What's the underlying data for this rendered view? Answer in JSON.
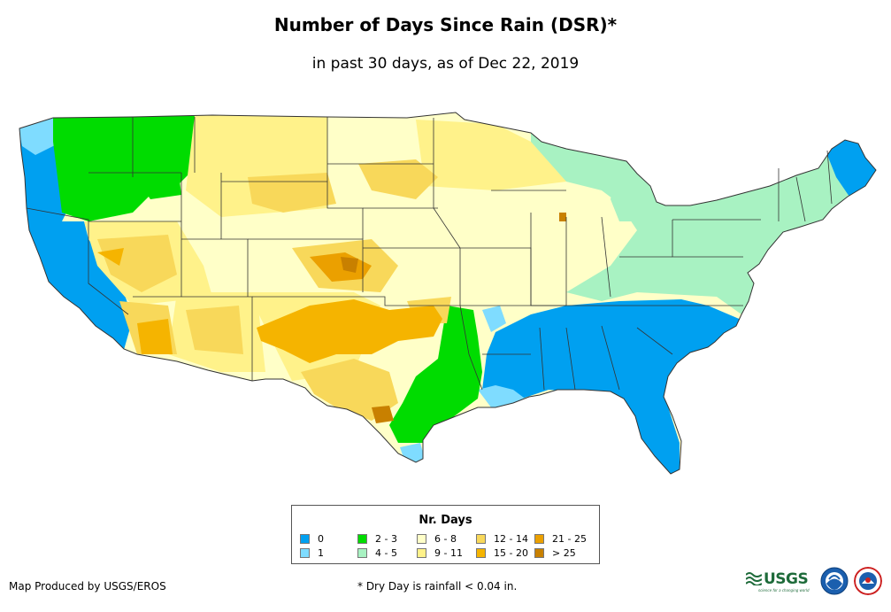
{
  "title": "Number of Days Since Rain (DSR)*",
  "subtitle": "in past 30 days, as of Dec 22, 2019",
  "legend": {
    "title": "Nr. Days",
    "items": [
      {
        "label": "0",
        "color": "#00a0f0"
      },
      {
        "label": "1",
        "color": "#7fdcff"
      },
      {
        "label": "2 - 3",
        "color": "#00dc00"
      },
      {
        "label": "4 - 5",
        "color": "#a8f2c2"
      },
      {
        "label": "6 - 8",
        "color": "#ffffc8"
      },
      {
        "label": "9 - 11",
        "color": "#fff28a"
      },
      {
        "label": "12 - 14",
        "color": "#f8d85a"
      },
      {
        "label": "15 - 20",
        "color": "#f5b400"
      },
      {
        "label": "21 - 25",
        "color": "#eba000"
      },
      {
        "label": "> 25",
        "color": "#c88000"
      }
    ]
  },
  "credit": "Map Produced by USGS/EROS",
  "footnote": "* Dry Day is rainfall < 0.04 in.",
  "logos": {
    "usgs": "USGS",
    "usgs_tagline": "science for a changing world"
  }
}
